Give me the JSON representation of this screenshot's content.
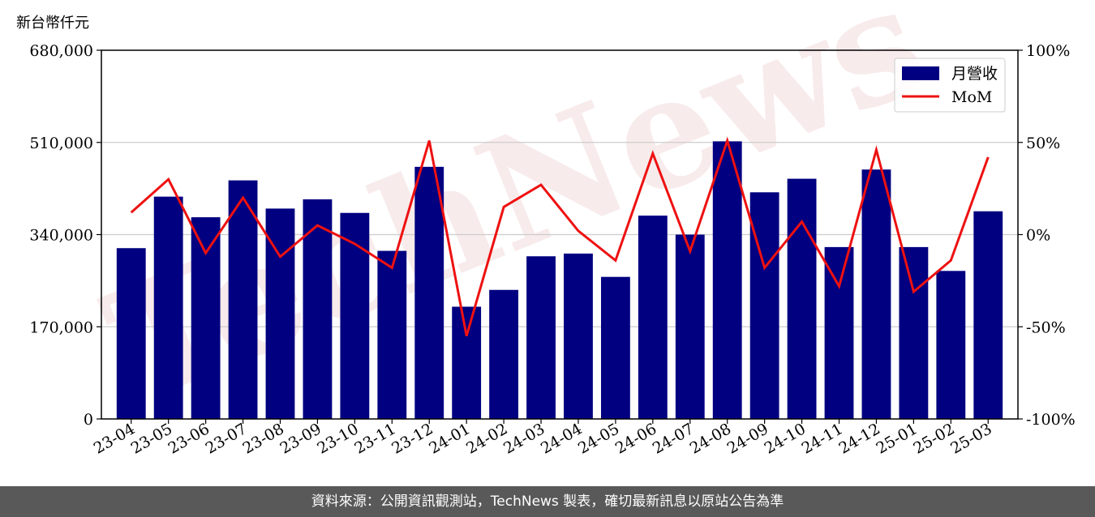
{
  "chart_data": {
    "type": "bar",
    "unit_label": "新台幣仟元",
    "categories": [
      "23-04",
      "23-05",
      "23-06",
      "23-07",
      "23-08",
      "23-09",
      "23-10",
      "23-11",
      "23-12",
      "24-01",
      "24-02",
      "24-03",
      "24-04",
      "24-05",
      "24-06",
      "24-07",
      "24-08",
      "24-09",
      "24-10",
      "24-11",
      "24-12",
      "25-01",
      "25-02",
      "25-03"
    ],
    "series": [
      {
        "name": "月營收",
        "type": "bar",
        "color": "#000080",
        "axis": "left",
        "values": [
          315000,
          410000,
          372000,
          440000,
          388000,
          405000,
          380000,
          310000,
          465000,
          207000,
          238000,
          300000,
          305000,
          262000,
          375000,
          340000,
          512000,
          418000,
          443000,
          317000,
          460000,
          317000,
          273000,
          383000
        ]
      },
      {
        "name": "MoM",
        "type": "line",
        "color": "#ee1111",
        "axis": "right",
        "values": [
          12,
          30,
          -10,
          20,
          -12,
          5,
          -5,
          -18,
          51,
          -55,
          15,
          27,
          2,
          -14,
          44,
          -9,
          51,
          -18,
          7,
          -28,
          46,
          -31,
          -14,
          42
        ]
      }
    ],
    "left_axis": {
      "ylim": [
        0,
        680000
      ],
      "ticks": [
        "0",
        "170,000",
        "340,000",
        "510,000",
        "680,000"
      ]
    },
    "right_axis": {
      "ylim": [
        -100,
        100
      ],
      "ticks": [
        "-100%",
        "-50%",
        "0%",
        "50%",
        "100%"
      ]
    },
    "grid": true,
    "legend_position": "top-right"
  },
  "watermark": "TechNews",
  "footer": "資料來源：公開資訊觀測站，TechNews 製表，確切最新訊息以原站公告為準"
}
